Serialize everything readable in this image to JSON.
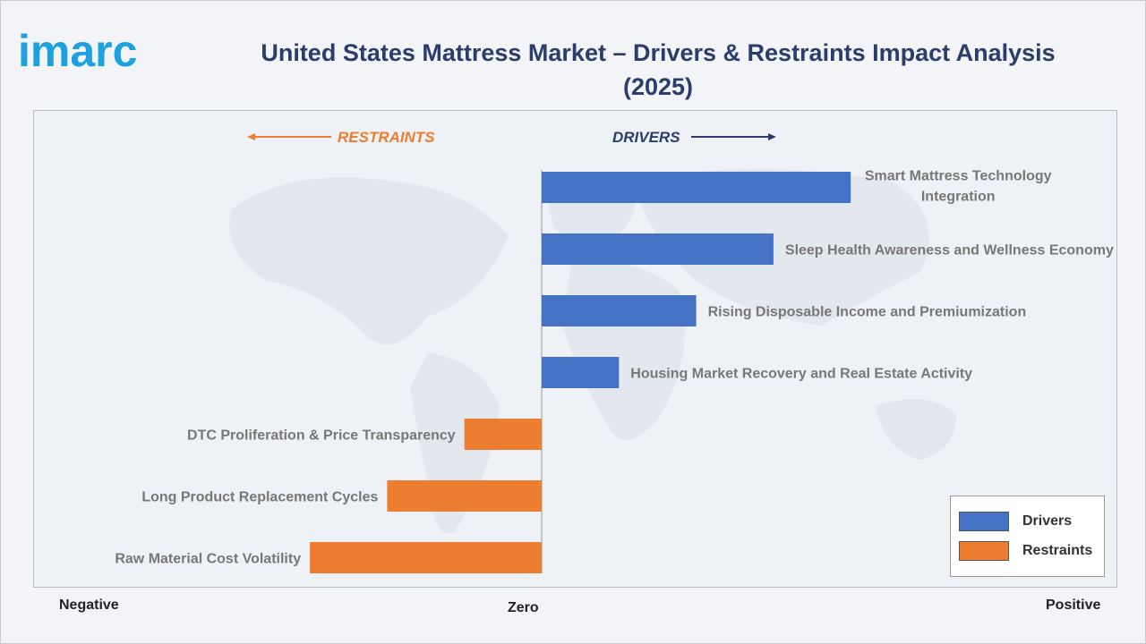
{
  "brand": "imarc",
  "title": "United States Mattress Market – Drivers & Restraints Impact Analysis (2025)",
  "colors": {
    "drivers": "#4472c4",
    "restraints": "#ed7d31",
    "title": "#2b3d6b",
    "logo": "#1ea1e0"
  },
  "header": {
    "restraints": "RESTRAINTS",
    "drivers": "DRIVERS"
  },
  "axis": {
    "negative": "Negative",
    "zero": "Zero",
    "positive": "Positive"
  },
  "legend": [
    {
      "label": "Drivers",
      "color": "#4472c4"
    },
    {
      "label": "Restraints",
      "color": "#ed7d31"
    }
  ],
  "chart_data": {
    "type": "bar",
    "orientation": "horizontal",
    "title": "United States Mattress Market – Drivers & Restraints Impact Analysis (2025)",
    "xlim": [
      -6.6,
      7.4
    ],
    "legend_position": "bottom-right",
    "categories": [
      "Smart Mattress Technology Integration",
      "Sleep Health Awareness and Wellness Economy",
      "Rising Disposable Income and Premiumization",
      "Housing Market Recovery and Real Estate Activity",
      "DTC Proliferation & Price Transparency",
      "Long Product Replacement Cycles",
      "Raw Material Cost Volatility"
    ],
    "label_lines": [
      [
        "Smart Mattress Technology",
        "Integration"
      ],
      [
        "Sleep Health Awareness and Wellness Economy"
      ],
      [
        "Rising Disposable Income and Premiumization"
      ],
      [
        "Housing Market Recovery and Real Estate Activity"
      ],
      [
        "DTC Proliferation & Price Transparency"
      ],
      [
        "Long Product Replacement Cycles"
      ],
      [
        "Raw Material Cost Volatility"
      ]
    ],
    "series": [
      {
        "name": "Drivers",
        "values": [
          4,
          3,
          2,
          1,
          null,
          null,
          null
        ]
      },
      {
        "name": "Restraints",
        "values": [
          null,
          null,
          null,
          null,
          -1,
          -2,
          -3
        ]
      }
    ]
  }
}
